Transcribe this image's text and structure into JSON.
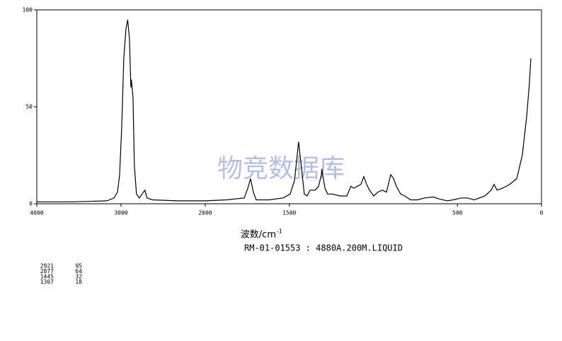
{
  "chart_data": {
    "type": "line",
    "x_scale_break": 2000,
    "xlim": [
      4000,
      0
    ],
    "ylim": [
      0,
      100
    ],
    "xticks": [
      4000,
      3000,
      2000,
      1500,
      500,
      0
    ],
    "yticks": [
      0,
      50,
      100
    ],
    "color": "#000000",
    "watermark": "物竞数据库",
    "xlabel": "波数/cm",
    "xlabel_sup": "-1",
    "caption": "RM-01-01553 : 4880A.200M.LIQUID",
    "peak_table": [
      [
        2921,
        95
      ],
      [
        2877,
        64
      ],
      [
        1445,
        32
      ],
      [
        1307,
        18
      ]
    ],
    "x": [
      4000,
      3583,
      3167,
      3083,
      3042,
      3017,
      2992,
      2967,
      2942,
      2921,
      2900,
      2883,
      2877,
      2858,
      2842,
      2817,
      2783,
      2750,
      2717,
      2692,
      2625,
      2333,
      2000,
      1874,
      1768,
      1747,
      1731,
      1714,
      1697,
      1621,
      1537,
      1495,
      1469,
      1453,
      1445,
      1427,
      1411,
      1394,
      1377,
      1347,
      1326,
      1309,
      1307,
      1288,
      1272,
      1242,
      1200,
      1158,
      1133,
      1116,
      1095,
      1074,
      1057,
      1040,
      1023,
      998,
      973,
      947,
      922,
      897,
      880,
      863,
      838,
      813,
      779,
      737,
      695,
      644,
      611,
      560,
      526,
      476,
      442,
      400,
      337,
      299,
      282,
      265,
      232,
      189,
      147,
      114,
      88,
      72,
      63
    ],
    "values": [
      1,
      1,
      1.5,
      3,
      6,
      15,
      40,
      75,
      90,
      95,
      85,
      60,
      64,
      55,
      20,
      5,
      3,
      5,
      7,
      3,
      2,
      1.5,
      1.5,
      2,
      3,
      8,
      13,
      6,
      2,
      2,
      3,
      5,
      12,
      25,
      32,
      18,
      5,
      4,
      7,
      7,
      9,
      15,
      18,
      8,
      5,
      5,
      4,
      4,
      9,
      8,
      9,
      10,
      14,
      10,
      7,
      4,
      6,
      7,
      6,
      15,
      13,
      9,
      5,
      4,
      2,
      2,
      3,
      3.5,
      2.5,
      1.5,
      2,
      3,
      3,
      2,
      4,
      7,
      10,
      7,
      8,
      10,
      13,
      25,
      45,
      62,
      75
    ]
  }
}
